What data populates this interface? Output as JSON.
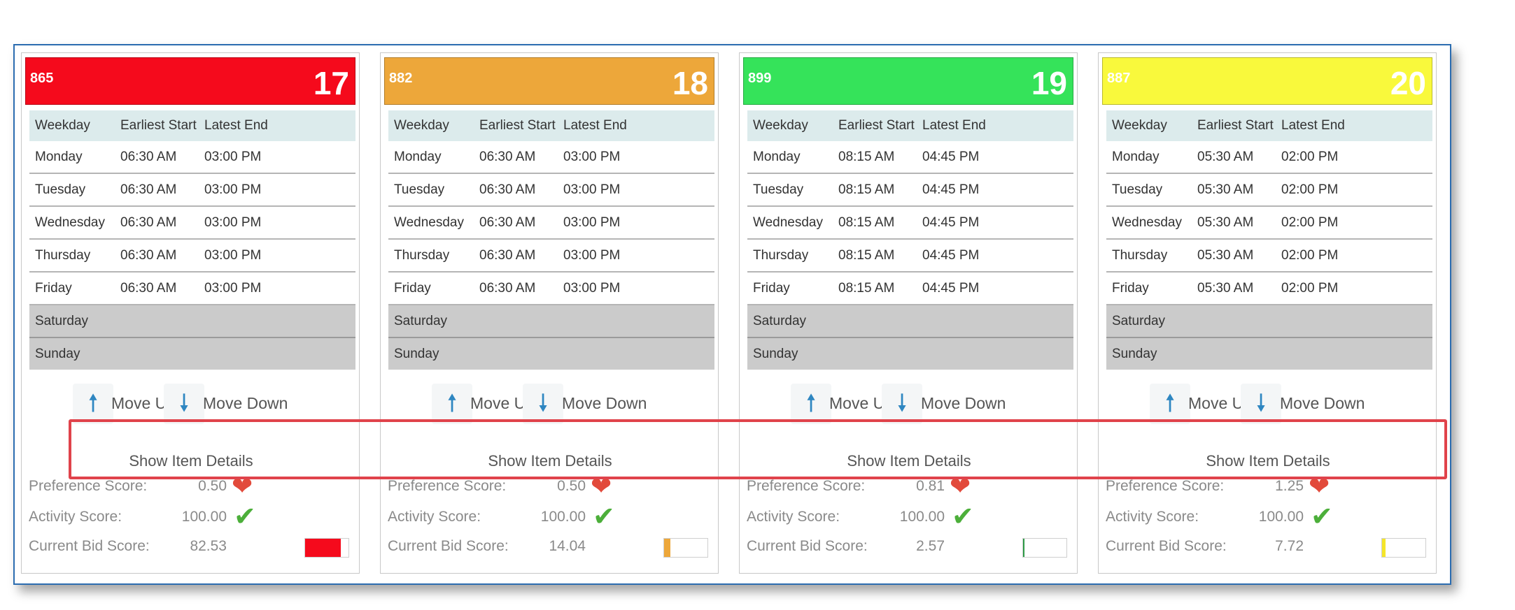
{
  "columns": {
    "weekday": "Weekday",
    "earliest_start": "Earliest Start",
    "latest_end": "Latest End"
  },
  "move_up_label": "Move Up",
  "move_down_label": "Move Down",
  "move_up_glyph": "🠕",
  "move_down_glyph": "🠗",
  "show_details_label": "Show Item Details",
  "score_labels": {
    "preference": "Preference Score:",
    "activity": "Activity Score:",
    "bid": "Current Bid Score:"
  },
  "heart_glyph": "❤",
  "check_glyph": "✔",
  "cards": [
    {
      "id": "865",
      "number": "17",
      "header_color": "#f50a1c",
      "rows": [
        {
          "day": "Monday",
          "start": "06:30 AM",
          "end": "03:00 PM"
        },
        {
          "day": "Tuesday",
          "start": "06:30 AM",
          "end": "03:00 PM"
        },
        {
          "day": "Wednesday",
          "start": "06:30 AM",
          "end": "03:00 PM"
        },
        {
          "day": "Thursday",
          "start": "06:30 AM",
          "end": "03:00 PM"
        },
        {
          "day": "Friday",
          "start": "06:30 AM",
          "end": "03:00 PM"
        },
        {
          "day": "Saturday",
          "start": "",
          "end": ""
        },
        {
          "day": "Sunday",
          "start": "",
          "end": ""
        }
      ],
      "preference": "0.50",
      "activity": "100.00",
      "bid": "82.53",
      "bid_fraction": 0.8253,
      "bid_color": "#f50a1c"
    },
    {
      "id": "882",
      "number": "18",
      "header_color": "#eda73a",
      "rows": [
        {
          "day": "Monday",
          "start": "06:30 AM",
          "end": "03:00 PM"
        },
        {
          "day": "Tuesday",
          "start": "06:30 AM",
          "end": "03:00 PM"
        },
        {
          "day": "Wednesday",
          "start": "06:30 AM",
          "end": "03:00 PM"
        },
        {
          "day": "Thursday",
          "start": "06:30 AM",
          "end": "03:00 PM"
        },
        {
          "day": "Friday",
          "start": "06:30 AM",
          "end": "03:00 PM"
        },
        {
          "day": "Saturday",
          "start": "",
          "end": ""
        },
        {
          "day": "Sunday",
          "start": "",
          "end": ""
        }
      ],
      "preference": "0.50",
      "activity": "100.00",
      "bid": "14.04",
      "bid_fraction": 0.1404,
      "bid_color": "#eda73a"
    },
    {
      "id": "899",
      "number": "19",
      "header_color": "#35e35a",
      "rows": [
        {
          "day": "Monday",
          "start": "08:15 AM",
          "end": "04:45 PM"
        },
        {
          "day": "Tuesday",
          "start": "08:15 AM",
          "end": "04:45 PM"
        },
        {
          "day": "Wednesday",
          "start": "08:15 AM",
          "end": "04:45 PM"
        },
        {
          "day": "Thursday",
          "start": "08:15 AM",
          "end": "04:45 PM"
        },
        {
          "day": "Friday",
          "start": "08:15 AM",
          "end": "04:45 PM"
        },
        {
          "day": "Saturday",
          "start": "",
          "end": ""
        },
        {
          "day": "Sunday",
          "start": "",
          "end": ""
        }
      ],
      "preference": "0.81",
      "activity": "100.00",
      "bid": "2.57",
      "bid_fraction": 0.0257,
      "bid_color": "#2e9a46"
    },
    {
      "id": "887",
      "number": "20",
      "header_color": "#f9f93c",
      "rows": [
        {
          "day": "Monday",
          "start": "05:30 AM",
          "end": "02:00 PM"
        },
        {
          "day": "Tuesday",
          "start": "05:30 AM",
          "end": "02:00 PM"
        },
        {
          "day": "Wednesday",
          "start": "05:30 AM",
          "end": "02:00 PM"
        },
        {
          "day": "Thursday",
          "start": "05:30 AM",
          "end": "02:00 PM"
        },
        {
          "day": "Friday",
          "start": "05:30 AM",
          "end": "02:00 PM"
        },
        {
          "day": "Saturday",
          "start": "",
          "end": ""
        },
        {
          "day": "Sunday",
          "start": "",
          "end": ""
        }
      ],
      "preference": "1.25",
      "activity": "100.00",
      "bid": "7.72",
      "bid_fraction": 0.0772,
      "bid_color": "#f5e62a"
    }
  ]
}
